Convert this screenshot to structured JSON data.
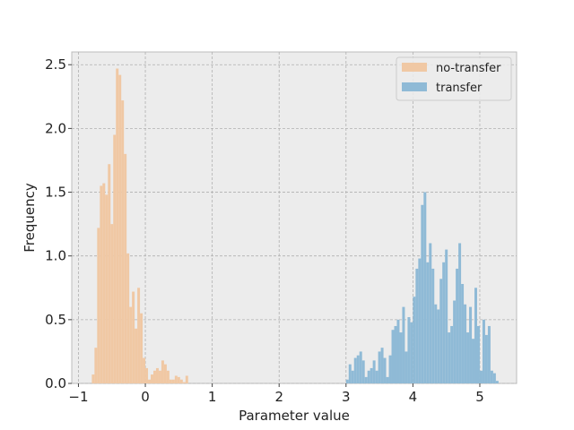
{
  "chart_data": {
    "type": "bar",
    "title": "",
    "xlabel": "Parameter value",
    "ylabel": "Frequency",
    "xlim": [
      -1.1,
      5.55
    ],
    "ylim": [
      0,
      2.6
    ],
    "xticks": [
      -1,
      0,
      1,
      2,
      3,
      4,
      5
    ],
    "xtick_labels": [
      "−1",
      "0",
      "1",
      "2",
      "3",
      "4",
      "5"
    ],
    "yticks": [
      0,
      0.5,
      1.0,
      1.5,
      2.0,
      2.5
    ],
    "ytick_labels": [
      "0.0",
      "0.5",
      "1.0",
      "1.5",
      "2.0",
      "2.5"
    ],
    "grid": true,
    "legend_position": "top-right",
    "bin_width": 0.04,
    "series": [
      {
        "name": "no-transfer",
        "color": "#f0c8a4",
        "x": [
          -0.78,
          -0.74,
          -0.7,
          -0.66,
          -0.62,
          -0.58,
          -0.54,
          -0.5,
          -0.46,
          -0.42,
          -0.38,
          -0.34,
          -0.3,
          -0.26,
          -0.22,
          -0.18,
          -0.14,
          -0.1,
          -0.06,
          -0.02,
          0.02,
          0.06,
          0.1,
          0.14,
          0.18,
          0.22,
          0.26,
          0.3,
          0.34,
          0.38,
          0.42,
          0.46,
          0.5,
          0.54,
          0.58,
          0.62
        ],
        "values": [
          0.07,
          0.28,
          1.22,
          1.55,
          1.57,
          1.48,
          1.72,
          1.25,
          1.95,
          2.47,
          2.42,
          2.22,
          1.8,
          1.02,
          0.6,
          0.72,
          0.43,
          0.75,
          0.55,
          0.2,
          0.12,
          0.03,
          0.07,
          0.1,
          0.12,
          0.1,
          0.18,
          0.15,
          0.1,
          0.03,
          0.03,
          0.06,
          0.05,
          0.03,
          0.01,
          0.06
        ]
      },
      {
        "name": "transfer",
        "color": "#8fbad6",
        "x": [
          3.02,
          3.06,
          3.1,
          3.14,
          3.18,
          3.22,
          3.26,
          3.3,
          3.34,
          3.38,
          3.42,
          3.46,
          3.5,
          3.54,
          3.58,
          3.62,
          3.66,
          3.7,
          3.74,
          3.78,
          3.82,
          3.86,
          3.9,
          3.94,
          3.98,
          4.02,
          4.06,
          4.1,
          4.14,
          4.18,
          4.22,
          4.26,
          4.3,
          4.34,
          4.38,
          4.42,
          4.46,
          4.5,
          4.54,
          4.58,
          4.62,
          4.66,
          4.7,
          4.74,
          4.78,
          4.82,
          4.86,
          4.9,
          4.94,
          4.98,
          5.02,
          5.06,
          5.1,
          5.14,
          5.18,
          5.22,
          5.26
        ],
        "values": [
          0.03,
          0.15,
          0.1,
          0.2,
          0.22,
          0.25,
          0.18,
          0.05,
          0.1,
          0.12,
          0.18,
          0.1,
          0.25,
          0.28,
          0.2,
          0.05,
          0.22,
          0.42,
          0.45,
          0.5,
          0.4,
          0.6,
          0.25,
          0.52,
          0.48,
          0.68,
          0.9,
          0.98,
          1.4,
          1.5,
          0.95,
          1.1,
          0.9,
          0.62,
          0.58,
          0.82,
          0.95,
          1.05,
          0.4,
          0.45,
          0.65,
          0.9,
          1.1,
          0.78,
          0.62,
          0.4,
          0.6,
          0.35,
          0.75,
          0.45,
          0.1,
          0.5,
          0.38,
          0.45,
          0.1,
          0.08,
          0.02
        ]
      }
    ]
  }
}
